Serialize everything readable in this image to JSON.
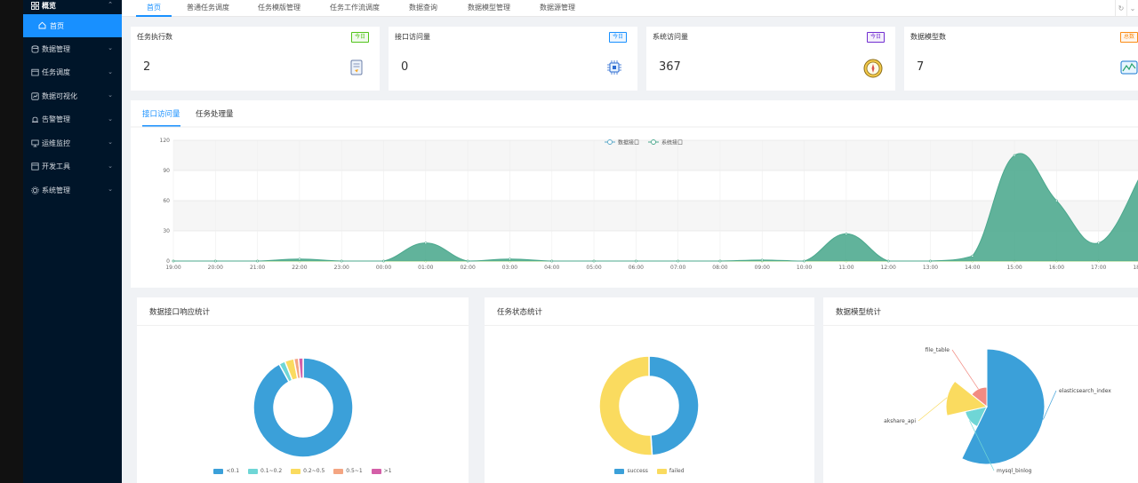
{
  "sidebar": {
    "top": {
      "label": "概览",
      "icon": "grid-icon"
    },
    "sub": {
      "label": "首页",
      "icon": "home-icon"
    },
    "items": [
      {
        "label": "数据管理",
        "icon": "database-icon"
      },
      {
        "label": "任务调度",
        "icon": "schedule-icon"
      },
      {
        "label": "数据可视化",
        "icon": "chart-icon"
      },
      {
        "label": "告警管理",
        "icon": "alarm-icon"
      },
      {
        "label": "运维监控",
        "icon": "monitor-icon"
      },
      {
        "label": "开发工具",
        "icon": "tool-icon"
      },
      {
        "label": "系统管理",
        "icon": "gear-icon"
      }
    ]
  },
  "tabs": [
    "首页",
    "普通任务调度",
    "任务模版管理",
    "任务工作流调度",
    "数据查询",
    "数据模型管理",
    "数据源管理"
  ],
  "stats": [
    {
      "title": "任务执行数",
      "badge": "今日",
      "value": "2",
      "badge_color": "#52c41a",
      "icon": "task-doc-icon"
    },
    {
      "title": "接口访问量",
      "badge": "今日",
      "value": "0",
      "badge_color": "#1890ff",
      "icon": "chip-icon"
    },
    {
      "title": "系统访问量",
      "badge": "今日",
      "value": "367",
      "badge_color": "#722ed1",
      "icon": "compass-icon"
    },
    {
      "title": "数据模型数",
      "badge": "总数",
      "value": "7",
      "badge_color": "#fa8c16",
      "icon": "model-chart-icon"
    }
  ],
  "chart_tabs": [
    "接口访问量",
    "任务处理量"
  ],
  "chart_data": [
    {
      "type": "area",
      "title": "",
      "x": [
        "19:00",
        "20:00",
        "21:00",
        "22:00",
        "23:00",
        "00:00",
        "01:00",
        "02:00",
        "03:00",
        "04:00",
        "05:00",
        "06:00",
        "07:00",
        "08:00",
        "09:00",
        "10:00",
        "11:00",
        "12:00",
        "13:00",
        "14:00",
        "15:00",
        "16:00",
        "17:00",
        "18:00"
      ],
      "series": [
        {
          "name": "数据接口",
          "values": [
            0,
            0,
            0,
            0,
            0,
            0,
            0,
            0,
            0,
            0,
            0,
            0,
            0,
            0,
            0,
            0,
            0,
            0,
            0,
            0,
            0,
            0,
            0,
            0
          ]
        },
        {
          "name": "系统接口",
          "values": [
            0,
            0,
            0,
            2,
            0,
            0,
            18,
            0,
            2,
            0,
            0,
            0,
            0,
            0,
            1,
            0,
            27,
            0,
            0,
            5,
            105,
            60,
            18,
            85
          ]
        }
      ],
      "ylim": [
        0,
        120
      ],
      "yticks": [
        0,
        30,
        60,
        90,
        120
      ],
      "legend": "top-center",
      "colors": [
        "#91cc75",
        "#4ba88d"
      ]
    },
    {
      "type": "pie",
      "title": "数据接口响应统计",
      "categories": [
        "<0.1",
        "0.1~0.2",
        "0.2~0.5",
        "0.5~1",
        ">1"
      ],
      "values": [
        92,
        2,
        3,
        1.5,
        1.5
      ],
      "colors": [
        "#3ba0d9",
        "#6fd6d6",
        "#fadb5f",
        "#f4a582",
        "#d45fa8"
      ]
    },
    {
      "type": "pie",
      "title": "任务状态统计",
      "categories": [
        "success",
        "failed"
      ],
      "values": [
        49,
        51
      ],
      "colors": [
        "#3ba0d9",
        "#fadb5f"
      ]
    },
    {
      "type": "pie",
      "title": "数据模型统计",
      "categories": [
        "elasticsearch_index",
        "mysql_binlog",
        "akshare_api",
        "file_table"
      ],
      "values": [
        4,
        1,
        1,
        1
      ],
      "radii": [
        65,
        25,
        46,
        22
      ],
      "colors": [
        "#3ba0d9",
        "#6fd6d6",
        "#fadb5f",
        "#f28b82"
      ]
    }
  ]
}
